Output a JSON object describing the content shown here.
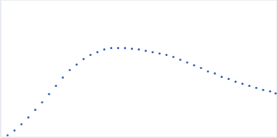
{
  "chart_data": {
    "type": "scatter",
    "color": "#3b64b4",
    "marker": "circle",
    "grid": true,
    "tick_labels": false,
    "xlim": [
      0,
      0.4
    ],
    "ylim": [
      0,
      2
    ],
    "xticks": [
      0.115
    ],
    "yticks": [
      1
    ],
    "x": [
      0.01,
      0.02,
      0.03,
      0.04,
      0.05,
      0.06,
      0.07,
      0.08,
      0.09,
      0.1,
      0.11,
      0.12,
      0.13,
      0.14,
      0.15,
      0.16,
      0.17,
      0.18,
      0.19,
      0.2,
      0.21,
      0.22,
      0.23,
      0.24,
      0.25,
      0.26,
      0.27,
      0.28,
      0.29,
      0.3,
      0.31,
      0.32,
      0.33,
      0.34,
      0.35,
      0.36,
      0.37,
      0.38,
      0.39,
      0.398
    ],
    "values": [
      0.03,
      0.1,
      0.19,
      0.29,
      0.4,
      0.51,
      0.63,
      0.75,
      0.87,
      0.98,
      1.06,
      1.14,
      1.2,
      1.24,
      1.28,
      1.3,
      1.3,
      1.3,
      1.29,
      1.28,
      1.26,
      1.24,
      1.22,
      1.2,
      1.17,
      1.13,
      1.09,
      1.05,
      1.01,
      0.96,
      0.93,
      0.88,
      0.85,
      0.81,
      0.78,
      0.75,
      0.72,
      0.69,
      0.67,
      0.64
    ]
  }
}
